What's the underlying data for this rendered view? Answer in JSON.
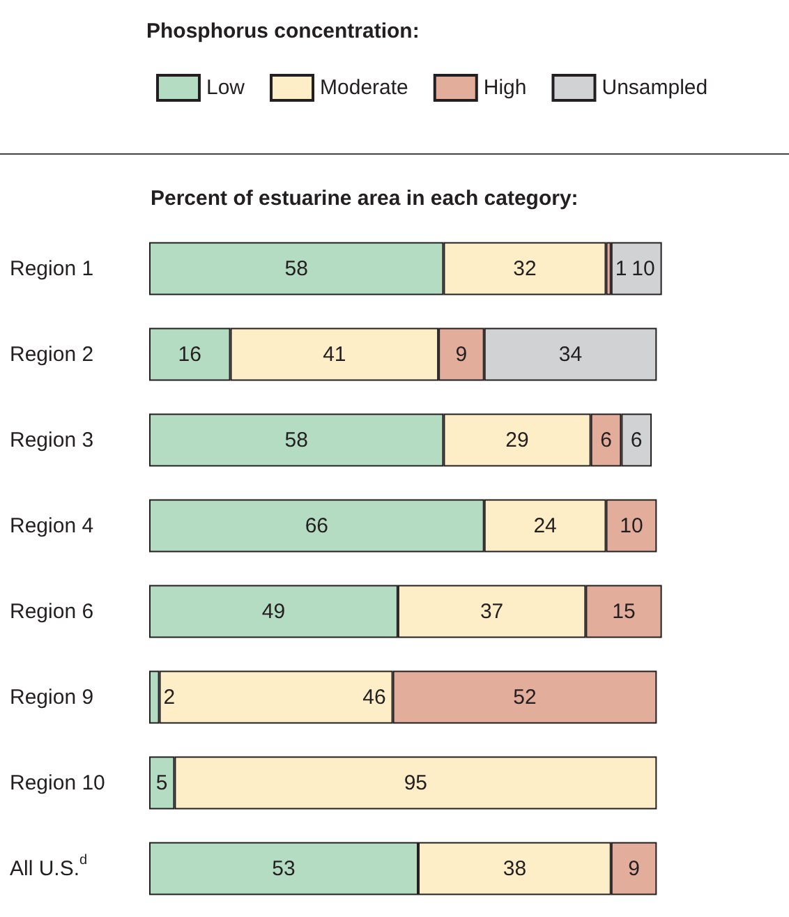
{
  "chart_data": {
    "type": "bar",
    "orientation": "horizontal",
    "stacked": true,
    "data_labels": true,
    "legend": "top",
    "legend_title": "Phosphorus concentration:",
    "title": "Percent of estuarine area in each category:",
    "categories": [
      "Region 1",
      "Region 2",
      "Region 3",
      "Region 4",
      "Region 6",
      "Region 9",
      "Region 10",
      "All U.S.$^{d}$"
    ],
    "series": [
      {
        "name": "Low",
        "color": "#b3dcc2",
        "values": [
          58,
          16,
          58,
          66,
          49,
          2,
          5,
          53
        ]
      },
      {
        "name": "Moderate",
        "color": "#fdeec8",
        "values": [
          32,
          41,
          29,
          24,
          37,
          46,
          95,
          38
        ]
      },
      {
        "name": "High",
        "color": "#e3ad9b",
        "values": [
          1,
          9,
          6,
          10,
          15,
          52,
          null,
          9
        ]
      },
      {
        "name": "Unsampled",
        "color": "#d1d2d4",
        "values": [
          10,
          34,
          6,
          null,
          null,
          null,
          null,
          null
        ]
      }
    ]
  }
}
